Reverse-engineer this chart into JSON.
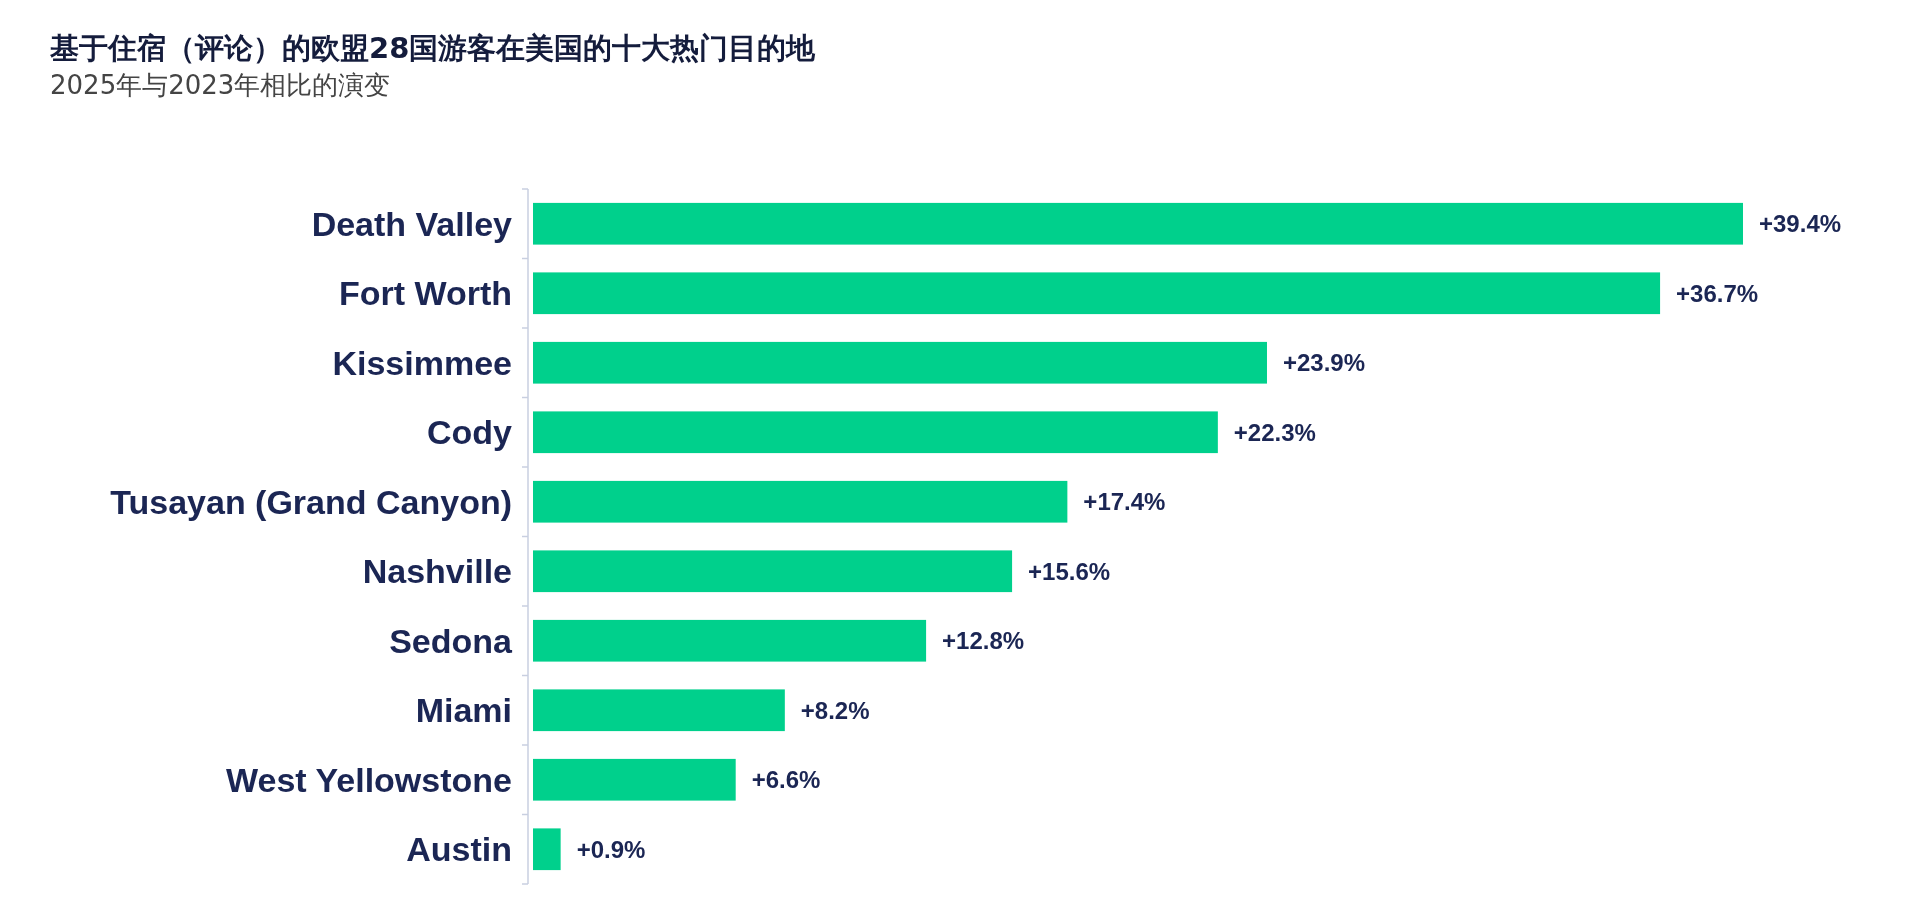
{
  "chart_data": {
    "type": "bar",
    "orientation": "horizontal",
    "title": "基于住宿（评论）的欧盟28国游客在美国的十大热门目的地",
    "subtitle": "2025年与2023年相比的演变",
    "categories": [
      "Death Valley",
      "Fort Worth",
      "Kissimmee",
      "Cody",
      "Tusayan (Grand Canyon)",
      "Nashville",
      "Sedona",
      "Miami",
      "West Yellowstone",
      "Austin"
    ],
    "values": [
      39.4,
      36.7,
      23.9,
      22.3,
      17.4,
      15.6,
      12.8,
      8.2,
      6.6,
      0.9
    ],
    "value_labels": [
      "+39.4%",
      "+36.7%",
      "+23.9%",
      "+22.3%",
      "+17.4%",
      "+15.6%",
      "+12.8%",
      "+8.2%",
      "+6.6%",
      "+0.9%"
    ],
    "color": "#00d08c"
  }
}
